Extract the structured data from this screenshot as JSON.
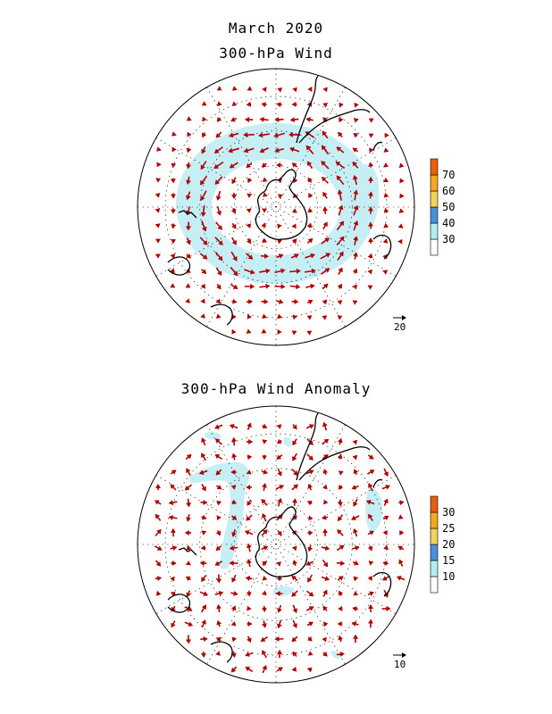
{
  "figure": {
    "title_line1": "March 2020",
    "top_panel": {
      "title": "300-hPa Wind",
      "colorbar": {
        "labels": [
          "30",
          "40",
          "50",
          "60",
          "70"
        ],
        "colors": [
          "#ffffff",
          "#b4ecf4",
          "#4a90d9",
          "#f2d35a",
          "#f5a623",
          "#e8600e"
        ]
      },
      "reference_vector": "20",
      "shading_color": "#c6eef5",
      "jet_ring": true
    },
    "bottom_panel": {
      "title": "300-hPa Wind Anomaly",
      "colorbar": {
        "labels": [
          "10",
          "15",
          "20",
          "25",
          "30"
        ],
        "colors": [
          "#ffffff",
          "#b4ecf4",
          "#4a90d9",
          "#f2d35a",
          "#f5a623",
          "#e8600e"
        ]
      },
      "reference_vector": "10",
      "shading_color": "#c6eef5"
    },
    "colors": {
      "vector": "#b00000",
      "coast": "#000000",
      "grid": "#000000"
    }
  }
}
